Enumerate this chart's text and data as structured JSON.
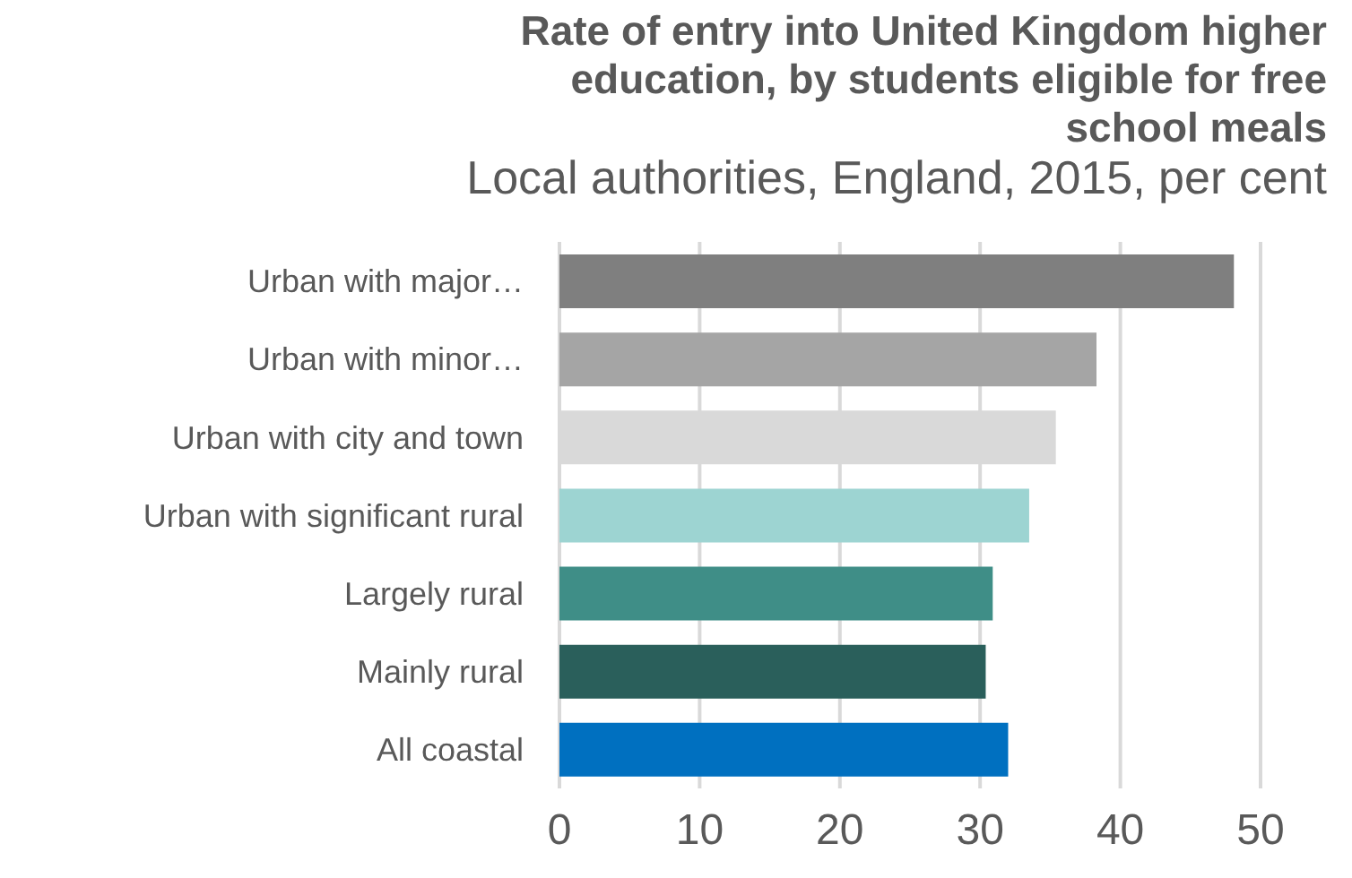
{
  "chart_data": {
    "type": "bar",
    "orientation": "horizontal",
    "title": "Rate of entry into United Kingdom higher education, by students eligible for free school meals",
    "subtitle": "Local authorities, England, 2015, per cent",
    "categories": [
      "Urban with major…",
      "Urban with minor…",
      "Urban with city and town",
      "Urban with significant rural",
      "Largely rural",
      "Mainly rural",
      "All coastal"
    ],
    "values": [
      48.1,
      38.3,
      35.4,
      33.5,
      30.9,
      30.4,
      32.0
    ],
    "colors": [
      "#7f7f7f",
      "#a5a5a5",
      "#d9d9d9",
      "#9dd4d2",
      "#3f8e87",
      "#2a5f5b",
      "#0070c0"
    ],
    "xlim": [
      0,
      50
    ],
    "xticks": [
      0,
      10,
      20,
      30,
      40,
      50
    ],
    "grid": "x"
  }
}
